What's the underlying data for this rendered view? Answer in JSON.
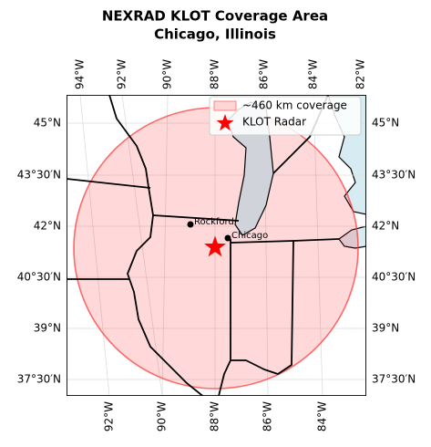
{
  "header": {
    "title": "NEXRAD KLOT Coverage Area",
    "subtitle": "Chicago, Illinois"
  },
  "map": {
    "top_ticks": [
      "94°W",
      "92°W",
      "90°W",
      "88°W",
      "86°W",
      "84°W",
      "82°W"
    ],
    "bottom_ticks": [
      "92°W",
      "90°W",
      "88°W",
      "86°W",
      "84°W"
    ],
    "left_ticks": [
      "45°N",
      "43°30′N",
      "42°N",
      "40°30′N",
      "39°N",
      "37°30′N"
    ],
    "right_ticks": [
      "45°N",
      "43°30′N",
      "42°N",
      "40°30′N",
      "39°N",
      "37°30′N"
    ],
    "cities": [
      "Rockford",
      "Chicago"
    ],
    "legend": [
      "~460 km coverage",
      "KLOT Radar"
    ]
  }
}
